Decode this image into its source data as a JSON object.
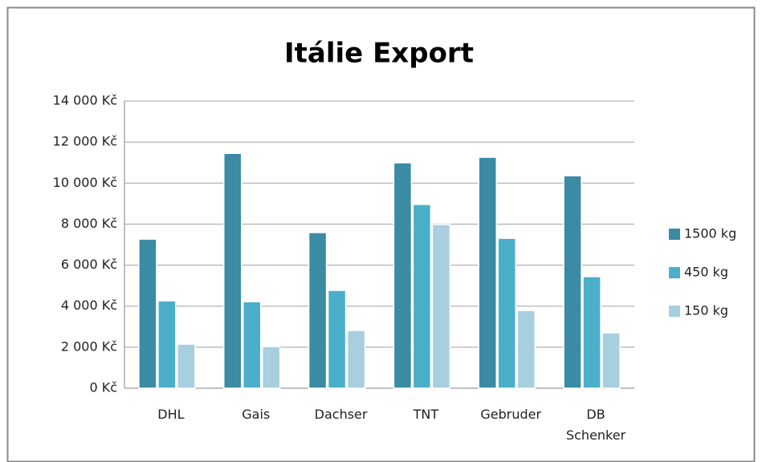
{
  "chart_data": {
    "type": "bar",
    "title": "Itálie Export",
    "categories": [
      "DHL",
      "Gais",
      "Dachser",
      "TNT",
      "Gebruder",
      "DB Schenker"
    ],
    "series": [
      {
        "name": "1500 kg",
        "color": "#3a8ba3",
        "values": [
          7270,
          11450,
          7590,
          10990,
          11260,
          10360
        ]
      },
      {
        "name": "450 kg",
        "color": "#4bafca",
        "values": [
          4260,
          4220,
          4770,
          8960,
          7310,
          5440
        ]
      },
      {
        "name": "150 kg",
        "color": "#a7cfdd",
        "values": [
          2150,
          2030,
          2820,
          7980,
          3790,
          2700
        ]
      }
    ],
    "ylim": [
      0,
      14000
    ],
    "yticks": [
      {
        "value": 0,
        "label": "0 Kč"
      },
      {
        "value": 2000,
        "label": "2 000 Kč"
      },
      {
        "value": 4000,
        "label": "4 000 Kč"
      },
      {
        "value": 6000,
        "label": "6 000 Kč"
      },
      {
        "value": 8000,
        "label": "8 000 Kč"
      },
      {
        "value": 10000,
        "label": "10 000 Kč"
      },
      {
        "value": 12000,
        "label": "12 000 Kč"
      },
      {
        "value": 14000,
        "label": "14 000 Kč"
      }
    ],
    "grid": true,
    "legend": "right"
  }
}
